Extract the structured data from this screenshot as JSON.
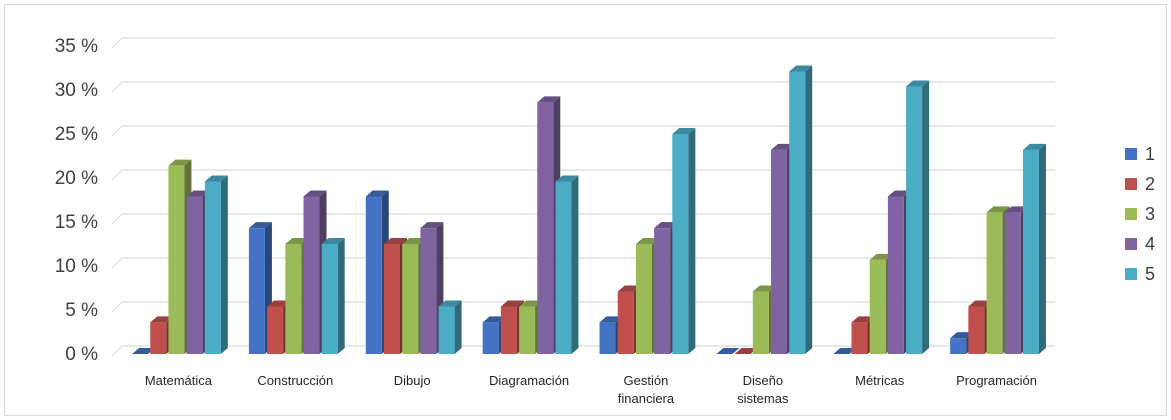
{
  "chart_data": {
    "type": "bar",
    "categories": [
      [
        "Matemática"
      ],
      [
        "Construcción"
      ],
      [
        "Dibujo"
      ],
      [
        "Diagramación"
      ],
      [
        "Gestión",
        "financiera"
      ],
      [
        "Diseño",
        "sistemas"
      ],
      [
        "Métricas"
      ],
      [
        "Programación"
      ]
    ],
    "series": [
      {
        "name": "1",
        "color": "#4472C4",
        "values": [
          0,
          14.3,
          17.9,
          3.6,
          3.6,
          0,
          0,
          1.8
        ]
      },
      {
        "name": "2",
        "color": "#C0504D",
        "values": [
          3.6,
          5.4,
          12.5,
          5.4,
          7.1,
          0,
          3.6,
          5.4
        ]
      },
      {
        "name": "3",
        "color": "#9BBB59",
        "values": [
          21.4,
          12.5,
          12.5,
          5.4,
          12.5,
          7.1,
          10.7,
          16.1
        ]
      },
      {
        "name": "4",
        "color": "#8064A2",
        "values": [
          17.9,
          17.9,
          14.3,
          28.6,
          14.3,
          23.2,
          17.9,
          16.1
        ]
      },
      {
        "name": "5",
        "color": "#4BACC6",
        "values": [
          19.6,
          12.5,
          5.4,
          19.6,
          25.0,
          32.1,
          30.4,
          23.2
        ]
      }
    ],
    "yticks": [
      "0 %",
      "5 %",
      "10 %",
      "15 %",
      "20 %",
      "25 %",
      "30 %",
      "35 %"
    ],
    "ylim": [
      0,
      35
    ],
    "grid": true,
    "legend_position": "right"
  }
}
